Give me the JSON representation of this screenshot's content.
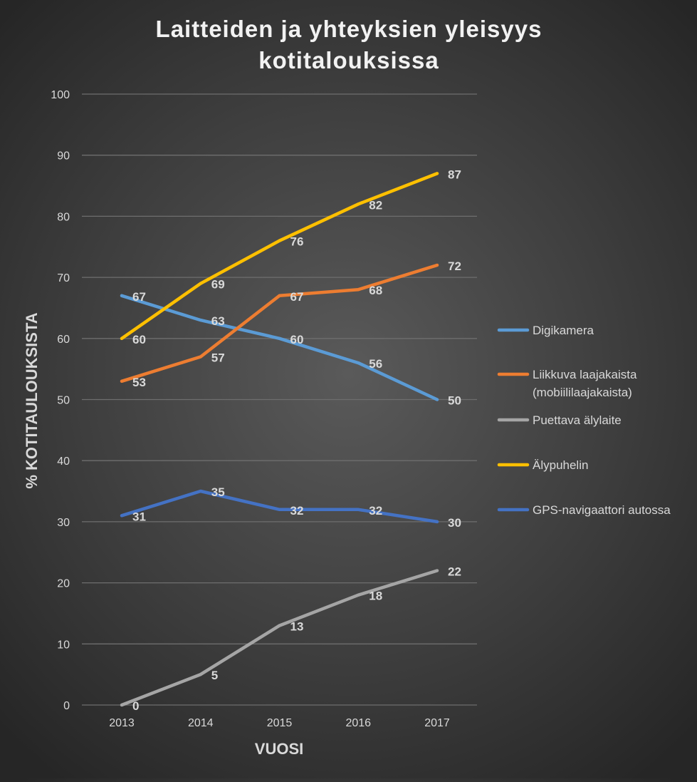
{
  "chart_data": {
    "type": "line",
    "title": [
      "Laitteiden ja yhteyksien yleisyys",
      "kotitalouksissa"
    ],
    "xlabel": "VUOSI",
    "ylabel": "% KOTITAULOUKSISTA",
    "ylim": [
      0,
      100
    ],
    "yticks": [
      "0",
      "10",
      "20",
      "30",
      "40",
      "50",
      "60",
      "70",
      "80",
      "90",
      "100"
    ],
    "categories": [
      "2013",
      "2014",
      "2015",
      "2016",
      "2017"
    ],
    "grid": true,
    "legend_position": "right",
    "series": [
      {
        "name": [
          "Digikamera"
        ],
        "color": "#5b9bd5",
        "values": [
          67,
          63,
          60,
          56,
          50
        ]
      },
      {
        "name": [
          "Liikkuva laajakaista",
          "(mobiililaajakaista)"
        ],
        "color": "#ed7d31",
        "values": [
          53,
          57,
          67,
          68,
          72
        ]
      },
      {
        "name": [
          "Puettava älylaite"
        ],
        "color": "#a5a5a5",
        "values": [
          0,
          5,
          13,
          18,
          22
        ]
      },
      {
        "name": [
          "Älypuhelin"
        ],
        "color": "#ffc000",
        "values": [
          60,
          69,
          76,
          82,
          87
        ]
      },
      {
        "name": [
          "GPS-navigaattori autossa"
        ],
        "color": "#4472c4",
        "values": [
          31,
          35,
          32,
          32,
          30
        ]
      }
    ]
  }
}
